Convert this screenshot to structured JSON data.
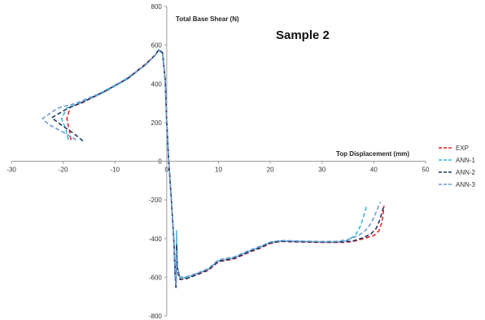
{
  "chart_data": {
    "type": "line",
    "title": "Sample 2",
    "xlabel": "Top Displacement (mm)",
    "ylabel": "Total Base Shear (N)",
    "xlim": [
      -30,
      50
    ],
    "ylim": [
      -800,
      800
    ],
    "x_ticks": [
      -30,
      -20,
      -10,
      0,
      10,
      20,
      30,
      40,
      50
    ],
    "y_ticks": [
      -800,
      -600,
      -400,
      -200,
      0,
      200,
      400,
      600,
      800
    ],
    "grid": false,
    "legend_position": "right",
    "series": [
      {
        "name": "EXP",
        "color": "#e8212a",
        "x": [
          -18.5,
          -18.8,
          -19.3,
          -18.6,
          -16.5,
          -12,
          -7.5,
          -4,
          -2.2,
          -1.5,
          -0.8,
          -0.3,
          0,
          0.4,
          0.9,
          1.4,
          1.6,
          1.8,
          1.9,
          2.1,
          2.6,
          4,
          6,
          8,
          10,
          13,
          16,
          18,
          20,
          22,
          26,
          30,
          34,
          36,
          38,
          40,
          41,
          41.5,
          41.8,
          41.9,
          42
        ],
        "y": [
          110,
          160,
          220,
          280,
          300,
          360,
          430,
          505,
          550,
          578,
          560,
          420,
          200,
          0,
          -200,
          -420,
          -580,
          -650,
          -470,
          -560,
          -610,
          -605,
          -585,
          -565,
          -520,
          -505,
          -470,
          -450,
          -425,
          -415,
          -418,
          -420,
          -420,
          -415,
          -400,
          -385,
          -360,
          -320,
          -280,
          -240,
          -230
        ]
      },
      {
        "name": "ANN-1",
        "color": "#35b4df",
        "x": [
          -19,
          -19.5,
          -20.3,
          -19.3,
          -16.8,
          -12.2,
          -7.6,
          -4,
          -2.2,
          -1.5,
          -0.8,
          -0.3,
          0,
          0.4,
          0.9,
          1.4,
          1.6,
          1.8,
          1.9,
          2.1,
          2.6,
          4,
          6,
          8,
          10,
          13,
          16,
          18,
          20,
          22,
          26,
          30,
          33,
          35,
          36.5,
          37.5,
          38.2,
          38.7
        ],
        "y": [
          110,
          165,
          220,
          275,
          300,
          355,
          425,
          500,
          548,
          576,
          560,
          420,
          200,
          0,
          -200,
          -420,
          -580,
          -640,
          -360,
          -550,
          -605,
          -600,
          -580,
          -560,
          -515,
          -500,
          -465,
          -445,
          -420,
          -412,
          -415,
          -418,
          -418,
          -410,
          -380,
          -330,
          -270,
          -225
        ]
      },
      {
        "name": "ANN-2",
        "color": "#1f3864",
        "x": [
          -16.2,
          -18,
          -20.5,
          -22.2,
          -19,
          -16.3,
          -12,
          -7.5,
          -4,
          -2.2,
          -1.5,
          -0.8,
          -0.3,
          0,
          0.4,
          0.9,
          1.4,
          1.6,
          1.8,
          1.9,
          2.1,
          2.6,
          4,
          6,
          8,
          10,
          13,
          16,
          18,
          20,
          22,
          26,
          30,
          34,
          36,
          38,
          39.5,
          40.5,
          41.2,
          41.6,
          42
        ],
        "y": [
          105,
          145,
          190,
          225,
          275,
          305,
          362,
          428,
          502,
          550,
          578,
          560,
          420,
          200,
          0,
          -200,
          -420,
          -580,
          -660,
          -430,
          -570,
          -612,
          -606,
          -584,
          -562,
          -518,
          -502,
          -468,
          -448,
          -423,
          -414,
          -417,
          -418,
          -418,
          -412,
          -395,
          -375,
          -345,
          -300,
          -260,
          -230
        ]
      },
      {
        "name": "ANN-3",
        "color": "#6a98d6",
        "x": [
          -17.5,
          -20,
          -22.8,
          -24,
          -21,
          -17.5,
          -13,
          -8.5,
          -4.5,
          -2.5,
          -1.5,
          -0.8,
          -0.3,
          0,
          0.4,
          0.9,
          1.4,
          1.6,
          1.8,
          1.9,
          2.1,
          2.6,
          4,
          6,
          8,
          10,
          13,
          16,
          18,
          20,
          22,
          26,
          30,
          33,
          35,
          37,
          38.5,
          39.5,
          40.2,
          40.8,
          41.3
        ],
        "y": [
          110,
          150,
          190,
          220,
          275,
          300,
          350,
          415,
          490,
          540,
          572,
          555,
          420,
          200,
          0,
          -200,
          -420,
          -560,
          -640,
          -460,
          -550,
          -600,
          -596,
          -578,
          -555,
          -510,
          -495,
          -460,
          -440,
          -418,
          -410,
          -413,
          -415,
          -414,
          -405,
          -385,
          -355,
          -320,
          -280,
          -240,
          -210
        ]
      }
    ]
  }
}
